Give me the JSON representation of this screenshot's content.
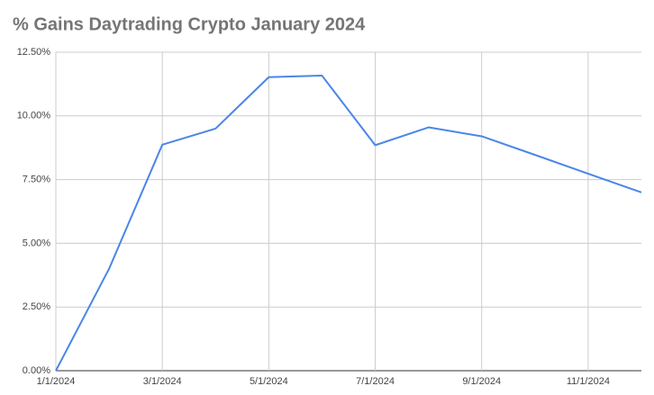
{
  "chart_data": {
    "type": "line",
    "title": "% Gains Daytrading Crypto January 2024",
    "categories": [
      "1/1/2024",
      null,
      "3/1/2024",
      null,
      "5/1/2024",
      null,
      "7/1/2024",
      null,
      "9/1/2024",
      null,
      "11/1/2024",
      null
    ],
    "series": [
      {
        "name": "% Gains",
        "color": "#4a86e8",
        "values": [
          0,
          4.0,
          8.87,
          9.5,
          11.52,
          11.58,
          8.85,
          9.55,
          9.2,
          8.47,
          7.73,
          7.0
        ]
      }
    ],
    "ylim": [
      0,
      12.5
    ],
    "yticks": [
      {
        "value": 0,
        "label": "0.00%"
      },
      {
        "value": 2.5,
        "label": "2.50%"
      },
      {
        "value": 5,
        "label": "5.00%"
      },
      {
        "value": 7.5,
        "label": "7.50%"
      },
      {
        "value": 10,
        "label": "10.00%"
      },
      {
        "value": 12.5,
        "label": "12.50%"
      }
    ],
    "grid": true
  }
}
